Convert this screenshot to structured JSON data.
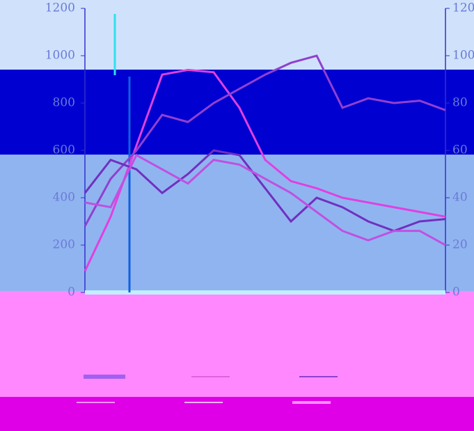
{
  "chart_data": {
    "type": "line",
    "categories": [
      null,
      null,
      null,
      null,
      null,
      null,
      null,
      null,
      null,
      null,
      null,
      null,
      null,
      null,
      null
    ],
    "series": [
      {
        "color": "#e040e0",
        "values": [
          90,
          320,
          620,
          920,
          940,
          930,
          780,
          560,
          470,
          440,
          400,
          380,
          360,
          340,
          320
        ]
      },
      {
        "color": "#9040d0",
        "values": [
          280,
          480,
          600,
          750,
          720,
          800,
          860,
          920,
          970,
          1000,
          780,
          820,
          800,
          810,
          770
        ]
      },
      {
        "color": "#7030c0",
        "values": [
          420,
          560,
          520,
          420,
          500,
          600,
          580,
          440,
          300,
          400,
          360,
          300,
          260,
          300,
          310
        ]
      },
      {
        "color": "#c050e0",
        "axis": "y2",
        "values": [
          38,
          36,
          58,
          52,
          46,
          56,
          54,
          48,
          42,
          34,
          26,
          22,
          26,
          26,
          20
        ]
      }
    ],
    "ylim": [
      0,
      1200
    ],
    "yticks": [
      0,
      200,
      400,
      600,
      800,
      1000,
      1200
    ],
    "y2lim": [
      0,
      120
    ],
    "y2ticks": [
      0,
      20,
      40,
      60,
      80,
      100,
      120
    ]
  }
}
